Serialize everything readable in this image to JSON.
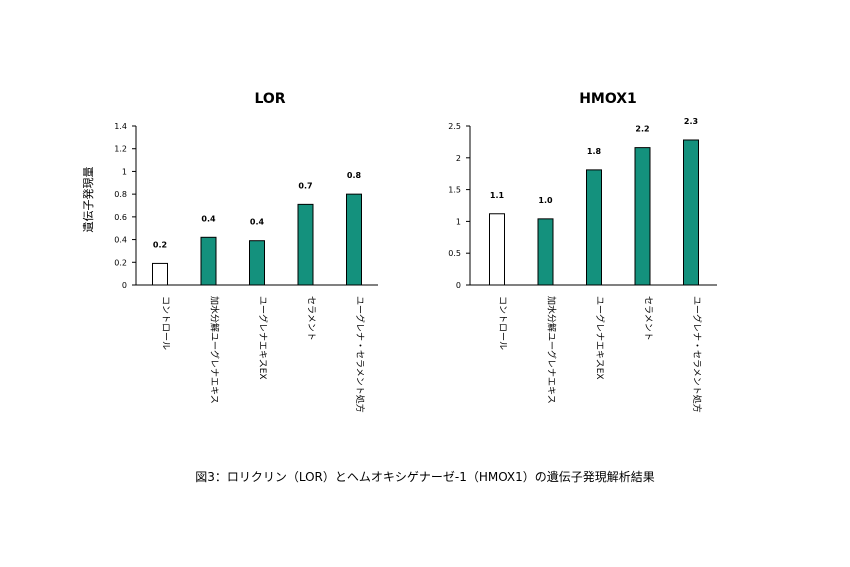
{
  "figure": {
    "caption": "図3：ロリクリン（LOR）とヘムオキシゲナーゼ-1（HMOX1）の遺伝子発現解析結果",
    "ylabel": "遺伝子発現量",
    "colors": {
      "control": "#ffffff",
      "treated": "#14917d",
      "edge": "#000000"
    }
  },
  "chart_data": [
    {
      "type": "bar",
      "title": "LOR",
      "ylabel": "遺伝子発現量",
      "ylim": [
        0,
        1.4
      ],
      "yticks": [
        "0",
        "0.2",
        "0.4",
        "0.6",
        "0.8",
        "1",
        "1.2",
        "1.4"
      ],
      "categories": [
        "コントロール",
        "加水分解ユーグレナエキス",
        "ユーグレナエキスEX",
        "セラメント",
        "ユーグレナ・セラメント処方"
      ],
      "values": [
        0.19,
        0.42,
        0.39,
        0.71,
        0.8
      ],
      "labels": [
        "0.2",
        "0.4",
        "0.4",
        "0.7",
        "0.8"
      ]
    },
    {
      "type": "bar",
      "title": "HMOX1",
      "ylabel": "",
      "ylim": [
        0,
        2.5
      ],
      "yticks": [
        "0",
        "0.5",
        "1",
        "1.5",
        "2",
        "2.5"
      ],
      "categories": [
        "コントロール",
        "加水分解ユーグレナエキス",
        "ユーグレナエキスEX",
        "セラメント",
        "ユーグレナ・セラメント処方"
      ],
      "values": [
        1.12,
        1.04,
        1.81,
        2.16,
        2.28
      ],
      "labels": [
        "1.1",
        "1.0",
        "1.8",
        "2.2",
        "2.3"
      ]
    }
  ]
}
